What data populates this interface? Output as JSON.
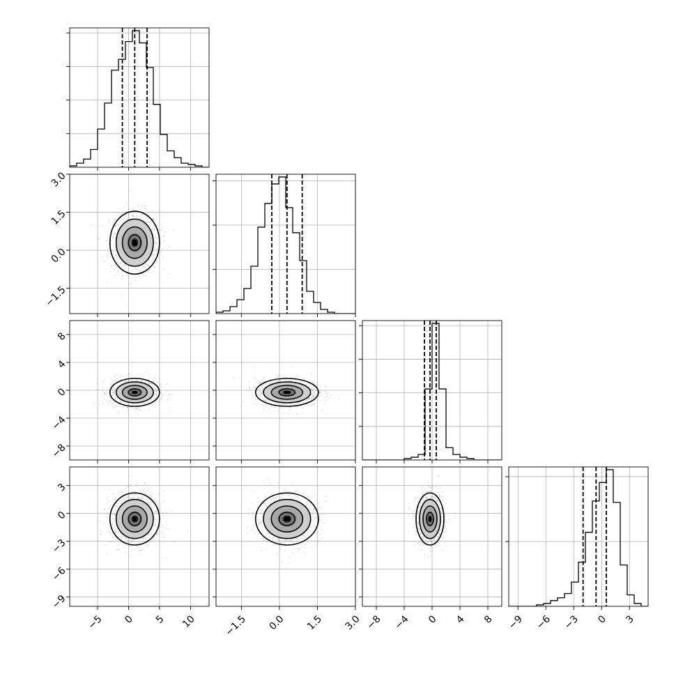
{
  "chart_data": {
    "type": "corner",
    "grid": true,
    "parameters": [
      {
        "range": [
          -9.5,
          13
        ],
        "ticks": [
          -5,
          0,
          5,
          10
        ],
        "tick_labels": [
          "−5",
          "0",
          "5",
          "10"
        ],
        "mean": 1.0,
        "sigma": 2.0,
        "quantiles": [
          -1.0,
          1.0,
          3.0
        ],
        "hist_counts": [
          1,
          3,
          6,
          13,
          28,
          47,
          71,
          79,
          92,
          100,
          91,
          73,
          46,
          24,
          12,
          7,
          3,
          2,
          1,
          0
        ]
      },
      {
        "range": [
          -2.5,
          3.0
        ],
        "ticks": [
          -1.5,
          0.0,
          1.5,
          3.0
        ],
        "tick_labels": [
          "−1.5",
          "0.0",
          "1.5",
          "3.0"
        ],
        "mean": 0.3,
        "sigma": 0.62,
        "quantiles": [
          -0.3,
          0.3,
          0.9
        ],
        "hist_counts": [
          1,
          2,
          5,
          10,
          18,
          34,
          62,
          79,
          93,
          98,
          76,
          58,
          38,
          16,
          8,
          3,
          1,
          0,
          0,
          0
        ]
      },
      {
        "range": [
          -10,
          10
        ],
        "ticks": [
          -8,
          -4,
          0,
          4,
          8
        ],
        "tick_labels": [
          "−8",
          "−4",
          "0",
          "4",
          "8"
        ],
        "mean": -0.3,
        "sigma": 1.0,
        "quantiles": [
          -1.1,
          -0.3,
          0.6
        ],
        "hist_counts": [
          0,
          0,
          0,
          0,
          0,
          0,
          1,
          2,
          4,
          52,
          100,
          52,
          9,
          4,
          2,
          1,
          0,
          0,
          0,
          0
        ]
      },
      {
        "range": [
          -10,
          5
        ],
        "ticks": [
          -9,
          -6,
          -3,
          0,
          3
        ],
        "tick_labels": [
          "−9",
          "−6",
          "−3",
          "0",
          "3"
        ],
        "mean": -0.6,
        "sigma": 1.4,
        "quantiles": [
          -2.0,
          -0.6,
          0.5
        ],
        "hist_counts": [
          0,
          0,
          0,
          0,
          1,
          2,
          4,
          6,
          9,
          17,
          31,
          52,
          74,
          87,
          96,
          73,
          29,
          8,
          2,
          0
        ]
      }
    ],
    "diag_row_ticks": [
      {
        "count": 4
      },
      {
        "count": 3
      },
      {
        "count": 4
      },
      {
        "count": 2
      }
    ],
    "row_tick_params": [
      1,
      2,
      3
    ],
    "contour_levels_sigma": [
      0.5,
      1.0,
      1.5,
      2.0
    ],
    "scatter_points_per_panel": 900,
    "colors": {
      "ink": "#000000",
      "points": "#8a8a8a",
      "grid": "#b0b0b0"
    }
  }
}
